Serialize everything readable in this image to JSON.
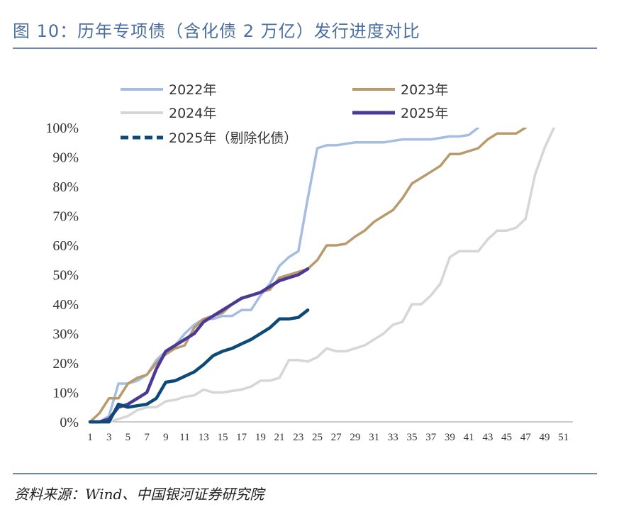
{
  "figure": {
    "title": "图 10：历年专项债（含化债 2 万亿）发行进度对比",
    "source": "资料来源：Wind、中国银河证券研究院"
  },
  "colors": {
    "title": "#4a6fa0",
    "rule": "#6f87b2",
    "s2022": "#a5bde0",
    "s2023": "#b89a6c",
    "s2024": "#d6d6d6",
    "s2025": "#4a3a96",
    "s2025ex": "#0e4a78"
  },
  "chart_data": {
    "type": "line",
    "title": "",
    "xlabel": "",
    "ylabel": "",
    "x_ticks": [
      1,
      3,
      5,
      7,
      9,
      11,
      13,
      15,
      17,
      19,
      21,
      23,
      25,
      27,
      29,
      31,
      33,
      35,
      37,
      39,
      41,
      43,
      45,
      47,
      49,
      51
    ],
    "xlim": [
      1,
      52
    ],
    "ylim": [
      0,
      1
    ],
    "y_ticks": [
      "0%",
      "10%",
      "20%",
      "30%",
      "40%",
      "50%",
      "60%",
      "70%",
      "80%",
      "90%",
      "100%"
    ],
    "grid": false,
    "legend_position": "top",
    "series": [
      {
        "name": "2022年",
        "style": "solid",
        "color": "#a5bde0",
        "width": 3.5,
        "x": [
          1,
          2,
          3,
          4,
          5,
          6,
          7,
          8,
          9,
          10,
          11,
          12,
          13,
          14,
          15,
          16,
          17,
          18,
          19,
          20,
          21,
          22,
          23,
          24,
          25,
          26,
          27,
          28,
          29,
          30,
          31,
          32,
          33,
          34,
          35,
          36,
          37,
          38,
          39,
          40,
          41,
          42
        ],
        "y": [
          0,
          0,
          0.02,
          0.13,
          0.13,
          0.14,
          0.16,
          0.21,
          0.24,
          0.26,
          0.3,
          0.33,
          0.35,
          0.35,
          0.36,
          0.36,
          0.38,
          0.38,
          0.43,
          0.47,
          0.53,
          0.56,
          0.58,
          0.76,
          0.93,
          0.94,
          0.94,
          0.945,
          0.95,
          0.95,
          0.95,
          0.95,
          0.955,
          0.96,
          0.96,
          0.96,
          0.96,
          0.965,
          0.97,
          0.97,
          0.975,
          1.0
        ]
      },
      {
        "name": "2023年",
        "style": "solid",
        "color": "#b89a6c",
        "width": 3.5,
        "x": [
          1,
          2,
          3,
          4,
          5,
          6,
          7,
          8,
          9,
          10,
          11,
          12,
          13,
          14,
          15,
          16,
          17,
          18,
          19,
          20,
          21,
          22,
          23,
          24,
          25,
          26,
          27,
          28,
          29,
          30,
          31,
          32,
          33,
          34,
          35,
          36,
          37,
          38,
          39,
          40,
          41,
          42,
          43,
          44,
          45,
          46,
          47
        ],
        "y": [
          0,
          0.03,
          0.08,
          0.08,
          0.13,
          0.15,
          0.16,
          0.2,
          0.23,
          0.25,
          0.26,
          0.32,
          0.35,
          0.36,
          0.37,
          0.4,
          0.42,
          0.43,
          0.44,
          0.45,
          0.49,
          0.5,
          0.51,
          0.52,
          0.55,
          0.6,
          0.6,
          0.605,
          0.63,
          0.65,
          0.68,
          0.7,
          0.72,
          0.76,
          0.81,
          0.83,
          0.85,
          0.87,
          0.91,
          0.91,
          0.92,
          0.93,
          0.96,
          0.98,
          0.98,
          0.98,
          1.0
        ]
      },
      {
        "name": "2024年",
        "style": "solid",
        "color": "#d6d6d6",
        "width": 3.5,
        "x": [
          1,
          2,
          3,
          4,
          5,
          6,
          7,
          8,
          9,
          10,
          11,
          12,
          13,
          14,
          15,
          16,
          17,
          18,
          19,
          20,
          21,
          22,
          23,
          24,
          25,
          26,
          27,
          28,
          29,
          30,
          31,
          32,
          33,
          34,
          35,
          36,
          37,
          38,
          39,
          40,
          41,
          42,
          43,
          44,
          45,
          46,
          47,
          48,
          49,
          50
        ],
        "y": [
          0,
          0,
          0,
          0.01,
          0.02,
          0.04,
          0.05,
          0.05,
          0.07,
          0.075,
          0.085,
          0.09,
          0.11,
          0.1,
          0.1,
          0.105,
          0.11,
          0.12,
          0.14,
          0.14,
          0.15,
          0.21,
          0.21,
          0.205,
          0.22,
          0.25,
          0.24,
          0.24,
          0.25,
          0.26,
          0.28,
          0.3,
          0.33,
          0.34,
          0.4,
          0.4,
          0.43,
          0.47,
          0.56,
          0.58,
          0.58,
          0.58,
          0.62,
          0.65,
          0.65,
          0.66,
          0.69,
          0.84,
          0.93,
          1.0
        ]
      },
      {
        "name": "2025年",
        "style": "solid",
        "color": "#4a3a96",
        "width": 4.5,
        "x": [
          1,
          2,
          3,
          4,
          5,
          6,
          7,
          8,
          9,
          10,
          11,
          12,
          13,
          14,
          15,
          16,
          17,
          18,
          19,
          20,
          21,
          22,
          23,
          24
        ],
        "y": [
          0,
          0,
          0.01,
          0.05,
          0.06,
          0.08,
          0.1,
          0.18,
          0.24,
          0.26,
          0.28,
          0.3,
          0.34,
          0.36,
          0.38,
          0.4,
          0.42,
          0.43,
          0.44,
          0.46,
          0.48,
          0.49,
          0.5,
          0.52
        ]
      },
      {
        "name": "2025年（剔除化债）",
        "style": "dashed",
        "color": "#0e4a78",
        "width": 4.5,
        "x": [
          1,
          2,
          3,
          4,
          5,
          6,
          7,
          8,
          9,
          10,
          11,
          12,
          13,
          14,
          15,
          16,
          17,
          18,
          19,
          20,
          21,
          22,
          23,
          24
        ],
        "y": [
          0,
          0,
          0,
          0.06,
          0.05,
          0.055,
          0.06,
          0.08,
          0.135,
          0.14,
          0.155,
          0.17,
          0.195,
          0.225,
          0.24,
          0.25,
          0.265,
          0.28,
          0.3,
          0.32,
          0.35,
          0.35,
          0.355,
          0.38
        ]
      }
    ]
  }
}
